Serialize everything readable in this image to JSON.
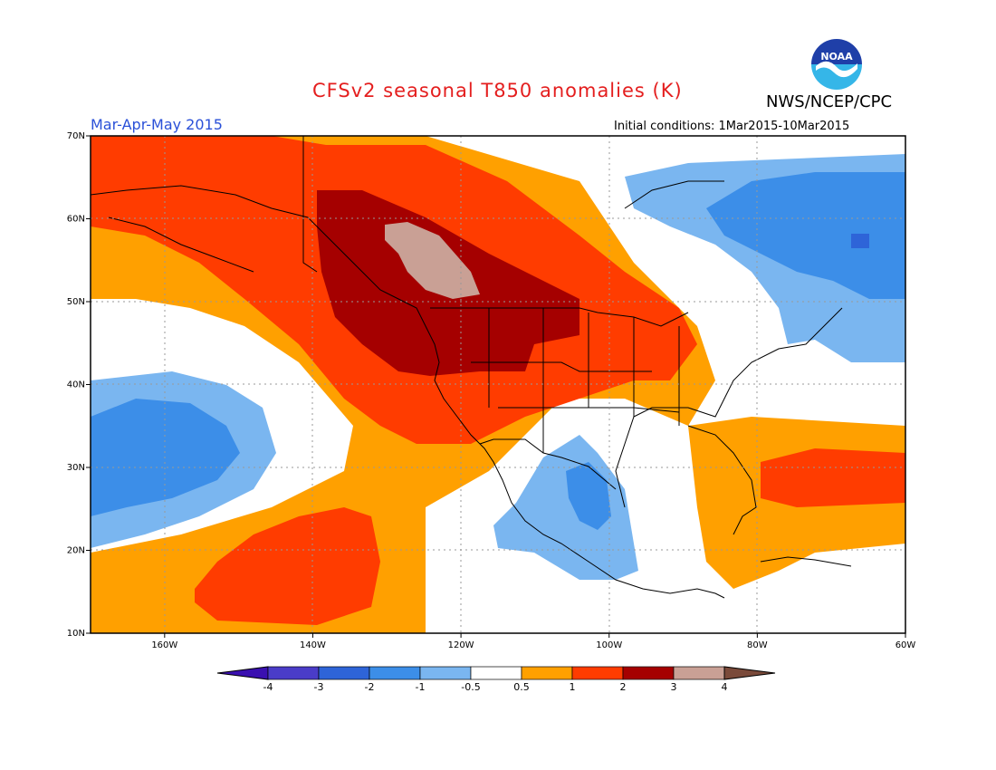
{
  "header": {
    "title": "CFSv2 seasonal T850 anomalies (K)",
    "agency": "NWS/NCEP/CPC",
    "season": "Mar-Apr-May 2015",
    "initial_conditions": "Initial conditions: 1Mar2015-10Mar2015",
    "logo_text": "NOAA"
  },
  "map": {
    "projection": "lat-lon",
    "lon_range": [
      -170,
      -60
    ],
    "lat_range": [
      10,
      70
    ],
    "lon_ticks": [
      {
        "lon": -160,
        "label": "160W"
      },
      {
        "lon": -140,
        "label": "140W"
      },
      {
        "lon": -120,
        "label": "120W"
      },
      {
        "lon": -100,
        "label": "100W"
      },
      {
        "lon": -80,
        "label": "80W"
      },
      {
        "lon": -60,
        "label": "60W"
      }
    ],
    "lat_ticks": [
      {
        "lat": 70,
        "label": "70N"
      },
      {
        "lat": 60,
        "label": "60N"
      },
      {
        "lat": 50,
        "label": "50N"
      },
      {
        "lat": 40,
        "label": "40N"
      },
      {
        "lat": 30,
        "label": "30N"
      },
      {
        "lat": 20,
        "label": "20N"
      },
      {
        "lat": 10,
        "label": "10N"
      }
    ],
    "background_anomaly_fill": 0.7
  },
  "colorbar": {
    "labels": [
      "-4",
      "-3",
      "-2",
      "-1",
      "-0.5",
      "0.5",
      "1",
      "2",
      "3",
      "4"
    ],
    "under_color": "#3a10b0",
    "over_color": "#7a4a3a",
    "colors": [
      "#4a3cc8",
      "#2e64d8",
      "#3c8ee8",
      "#7ab6f0",
      "#ffffff",
      "#ffa000",
      "#ff3c00",
      "#a50000",
      "#c9a095"
    ]
  },
  "anomaly_colors": {
    "very_high": "#c9a095",
    "high": "#a50000",
    "mid_high": "#ff3c00",
    "low_high": "#ffa000",
    "neutral": "#ffffff",
    "low_neg": "#7ab6f0",
    "mid_neg": "#3c8ee8",
    "high_neg": "#2e64d8"
  }
}
